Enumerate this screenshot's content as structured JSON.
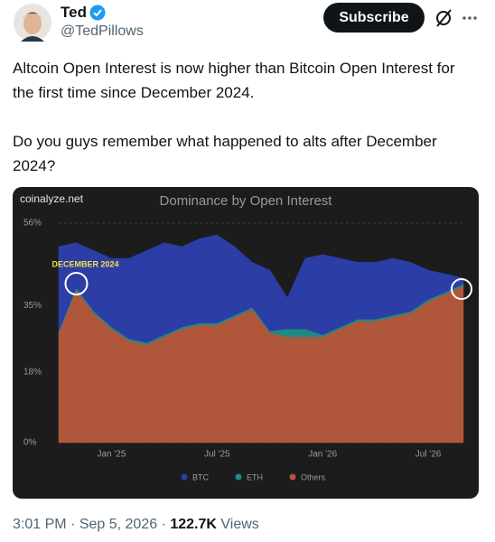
{
  "header": {
    "name": "Ted",
    "handle": "@TedPillows",
    "button": "Subscribe"
  },
  "post": {
    "paragraphs": [
      "Altcoin Open Interest is now higher than Bitcoin Open Interest for the first time since December 2024.",
      "Do you guys remember what happened to alts after December 2024?"
    ]
  },
  "chart_data": {
    "type": "stacked_area",
    "title": "Dominance by Open Interest",
    "source": "coinalyze.net",
    "annotation": "DECEMBER 2024",
    "categories": [
      null,
      null,
      null,
      "Jan '25",
      null,
      null,
      null,
      null,
      null,
      "Jul '25",
      null,
      null,
      null,
      null,
      null,
      "Jan '26",
      null,
      null,
      null,
      null,
      null,
      "Jul '26",
      null,
      null
    ],
    "series": [
      {
        "name": "Others",
        "color": "#b0563a",
        "values": [
          28,
          39,
          33,
          29,
          26,
          25,
          27,
          29,
          30,
          30,
          32,
          34,
          28,
          27,
          27,
          27,
          29,
          31,
          31,
          32,
          33,
          36,
          38,
          40
        ]
      },
      {
        "name": "ETH",
        "color": "#1f8a84",
        "values": [
          0.5,
          0.5,
          0.5,
          0.5,
          0.5,
          0.5,
          0.5,
          0.5,
          0.5,
          0.5,
          0.5,
          0.5,
          0.5,
          2,
          2,
          0.5,
          0.5,
          0.5,
          0.5,
          0.5,
          0.5,
          0.5,
          0.5,
          0.5
        ]
      },
      {
        "name": "BTC",
        "color": "#2d3da6",
        "values": [
          21.5,
          11.5,
          15.5,
          17.5,
          20.5,
          23.5,
          23.5,
          20.5,
          21.5,
          22.5,
          17.5,
          11.5,
          15.5,
          8,
          18,
          20.5,
          17.5,
          14.5,
          14.5,
          14.5,
          12.5,
          7.5,
          4.5,
          1.5
        ]
      }
    ],
    "legend_order": [
      "BTC",
      "ETH",
      "Others"
    ],
    "ylim": [
      0,
      56
    ],
    "yticks": [
      {
        "value": 0,
        "label": "0%"
      },
      {
        "value": 18,
        "label": "18%"
      },
      {
        "value": 35,
        "label": "35%"
      },
      {
        "value": 56,
        "label": "56%"
      }
    ],
    "grid": true,
    "legend": "bottom"
  },
  "footer": {
    "time": "3:01 PM",
    "date": "Sep 5, 2026",
    "views": "122.7K",
    "views_label": "Views"
  }
}
